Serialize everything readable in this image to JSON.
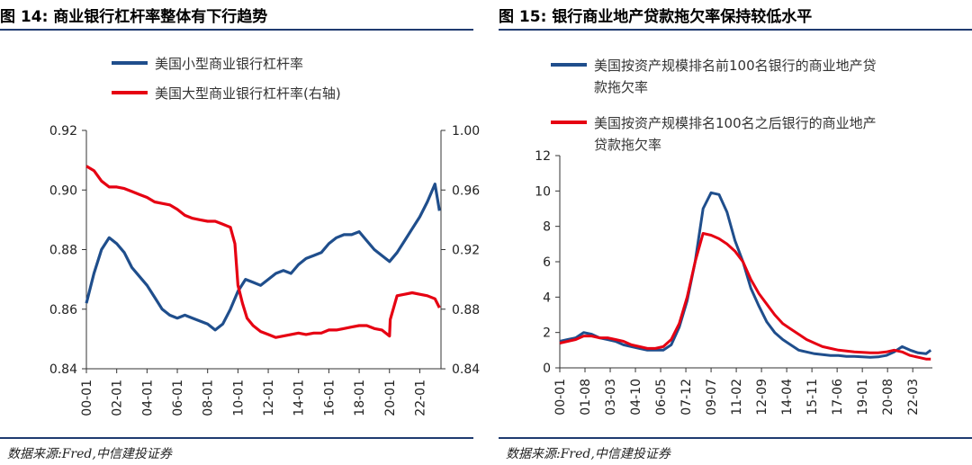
{
  "left": {
    "title": "图 14:  商业银行杠杆率整体有下行趋势",
    "source": "数据来源:Fred,中信建投证券"
  },
  "right": {
    "title": "图 15:  银行商业地产贷款拖欠率保持较低水平",
    "source": "数据来源:Fred,中信建投证券"
  },
  "chart_data": [
    {
      "type": "line",
      "title": "图 14:  商业银行杠杆率整体有下行趋势",
      "x_ticks": [
        "00-01",
        "02-01",
        "04-01",
        "06-01",
        "08-01",
        "10-01",
        "12-01",
        "14-01",
        "16-01",
        "18-01",
        "20-01",
        "22-01"
      ],
      "y_left": {
        "ticks": [
          "0.84",
          "0.86",
          "0.88",
          "0.90",
          "0.92"
        ],
        "range": [
          0.84,
          0.92
        ]
      },
      "y_right": {
        "ticks": [
          "0.84",
          "0.88",
          "0.92",
          "0.96",
          "1.00"
        ],
        "range": [
          0.84,
          1.0
        ]
      },
      "legend_position": "top",
      "series": [
        {
          "name": "美国小型商业银行杠杆率",
          "axis": "left",
          "color": "#1f4e8c",
          "x": [
            2000,
            2000.5,
            2001,
            2001.5,
            2002,
            2002.5,
            2003,
            2003.5,
            2004,
            2004.5,
            2005,
            2005.5,
            2006,
            2006.5,
            2007,
            2007.5,
            2008,
            2008.5,
            2009,
            2009.5,
            2010,
            2010.5,
            2011,
            2011.5,
            2012,
            2012.5,
            2013,
            2013.5,
            2014,
            2014.5,
            2015,
            2015.5,
            2016,
            2016.5,
            2017,
            2017.5,
            2018,
            2018.5,
            2019,
            2019.5,
            2020,
            2020.5,
            2021,
            2021.5,
            2022,
            2022.5,
            2023,
            2023.3
          ],
          "values": [
            0.862,
            0.872,
            0.88,
            0.884,
            0.882,
            0.879,
            0.874,
            0.871,
            0.868,
            0.864,
            0.86,
            0.858,
            0.857,
            0.858,
            0.857,
            0.856,
            0.855,
            0.853,
            0.855,
            0.86,
            0.866,
            0.87,
            0.869,
            0.868,
            0.87,
            0.872,
            0.873,
            0.872,
            0.875,
            0.877,
            0.878,
            0.879,
            0.882,
            0.884,
            0.885,
            0.885,
            0.886,
            0.883,
            0.88,
            0.878,
            0.876,
            0.879,
            0.883,
            0.887,
            0.891,
            0.896,
            0.902,
            0.893
          ]
        },
        {
          "name": "美国大型商业银行杠杆率(右轴)",
          "axis": "right",
          "color": "#e60012",
          "x": [
            2000,
            2000.5,
            2001,
            2001.5,
            2002,
            2002.5,
            2003,
            2003.5,
            2004,
            2004.5,
            2005,
            2005.5,
            2006,
            2006.5,
            2007,
            2007.5,
            2008,
            2008.5,
            2009,
            2009.5,
            2009.8,
            2010,
            2010.3,
            2010.6,
            2011,
            2011.5,
            2012,
            2012.5,
            2013,
            2013.5,
            2014,
            2014.5,
            2015,
            2015.5,
            2016,
            2016.5,
            2017,
            2017.5,
            2018,
            2018.5,
            2019,
            2019.5,
            2020,
            2020.05,
            2020.5,
            2021,
            2021.5,
            2022,
            2022.5,
            2023,
            2023.3
          ],
          "values": [
            0.976,
            0.973,
            0.966,
            0.962,
            0.962,
            0.961,
            0.959,
            0.957,
            0.955,
            0.952,
            0.951,
            0.95,
            0.947,
            0.943,
            0.941,
            0.94,
            0.939,
            0.939,
            0.937,
            0.935,
            0.924,
            0.896,
            0.884,
            0.874,
            0.869,
            0.865,
            0.863,
            0.861,
            0.862,
            0.863,
            0.864,
            0.863,
            0.864,
            0.864,
            0.866,
            0.866,
            0.867,
            0.868,
            0.869,
            0.869,
            0.867,
            0.866,
            0.862,
            0.873,
            0.889,
            0.89,
            0.891,
            0.89,
            0.889,
            0.887,
            0.881
          ]
        }
      ]
    },
    {
      "type": "line",
      "title": "图 15:  银行商业地产贷款拖欠率保持较低水平",
      "x_ticks": [
        "00-01",
        "01-08",
        "03-03",
        "04-10",
        "06-05",
        "07-12",
        "09-07",
        "11-02",
        "12-09",
        "14-04",
        "15-11",
        "17-06",
        "19-01",
        "20-08",
        "22-03"
      ],
      "y": {
        "ticks": [
          "0",
          "2",
          "4",
          "6",
          "8",
          "10",
          "12"
        ],
        "range": [
          0,
          12
        ]
      },
      "legend_position": "top",
      "series": [
        {
          "name": "美国按资产规模排名前100名银行的商业地产贷款拖欠率",
          "color": "#1f4e8c",
          "x": [
            2000,
            2000.5,
            2001,
            2001.5,
            2002,
            2002.5,
            2003,
            2003.5,
            2004,
            2004.5,
            2005,
            2005.5,
            2006,
            2006.5,
            2007,
            2007.5,
            2008,
            2008.5,
            2009,
            2009.5,
            2010,
            2010.5,
            2011,
            2011.5,
            2012,
            2012.5,
            2013,
            2013.5,
            2014,
            2014.5,
            2015,
            2015.5,
            2016,
            2016.5,
            2017,
            2017.5,
            2018,
            2018.5,
            2019,
            2019.5,
            2020,
            2020.5,
            2021,
            2021.5,
            2022,
            2022.5,
            2023,
            2023.3
          ],
          "values": [
            1.5,
            1.6,
            1.7,
            2.0,
            1.9,
            1.7,
            1.6,
            1.5,
            1.3,
            1.2,
            1.1,
            1.0,
            1.0,
            1.0,
            1.3,
            2.3,
            3.8,
            6.0,
            9.0,
            9.9,
            9.8,
            8.8,
            7.2,
            6.0,
            4.5,
            3.5,
            2.6,
            2.0,
            1.6,
            1.3,
            1.0,
            0.9,
            0.8,
            0.75,
            0.7,
            0.7,
            0.65,
            0.65,
            0.62,
            0.6,
            0.62,
            0.7,
            0.9,
            1.2,
            1.0,
            0.85,
            0.8,
            1.0
          ]
        },
        {
          "name": "美国按资产规模排名100名之后银行的商业地产贷款拖欠率",
          "color": "#e60012",
          "x": [
            2000,
            2000.5,
            2001,
            2001.5,
            2002,
            2002.5,
            2003,
            2003.5,
            2004,
            2004.5,
            2005,
            2005.5,
            2006,
            2006.5,
            2007,
            2007.5,
            2008,
            2008.5,
            2009,
            2009.5,
            2010,
            2010.5,
            2011,
            2011.5,
            2012,
            2012.5,
            2013,
            2013.5,
            2014,
            2014.5,
            2015,
            2015.5,
            2016,
            2016.5,
            2017,
            2017.5,
            2018,
            2018.5,
            2019,
            2019.5,
            2020,
            2020.5,
            2021,
            2021.5,
            2022,
            2022.5,
            2023,
            2023.3
          ],
          "values": [
            1.4,
            1.5,
            1.6,
            1.8,
            1.8,
            1.7,
            1.7,
            1.6,
            1.5,
            1.3,
            1.2,
            1.1,
            1.1,
            1.2,
            1.6,
            2.5,
            4.0,
            6.0,
            7.6,
            7.5,
            7.3,
            7.0,
            6.6,
            6.0,
            5.0,
            4.2,
            3.6,
            3.0,
            2.5,
            2.2,
            1.9,
            1.6,
            1.4,
            1.2,
            1.1,
            1.0,
            0.95,
            0.9,
            0.88,
            0.85,
            0.85,
            0.9,
            1.0,
            0.9,
            0.7,
            0.6,
            0.5,
            0.5
          ]
        }
      ]
    }
  ]
}
